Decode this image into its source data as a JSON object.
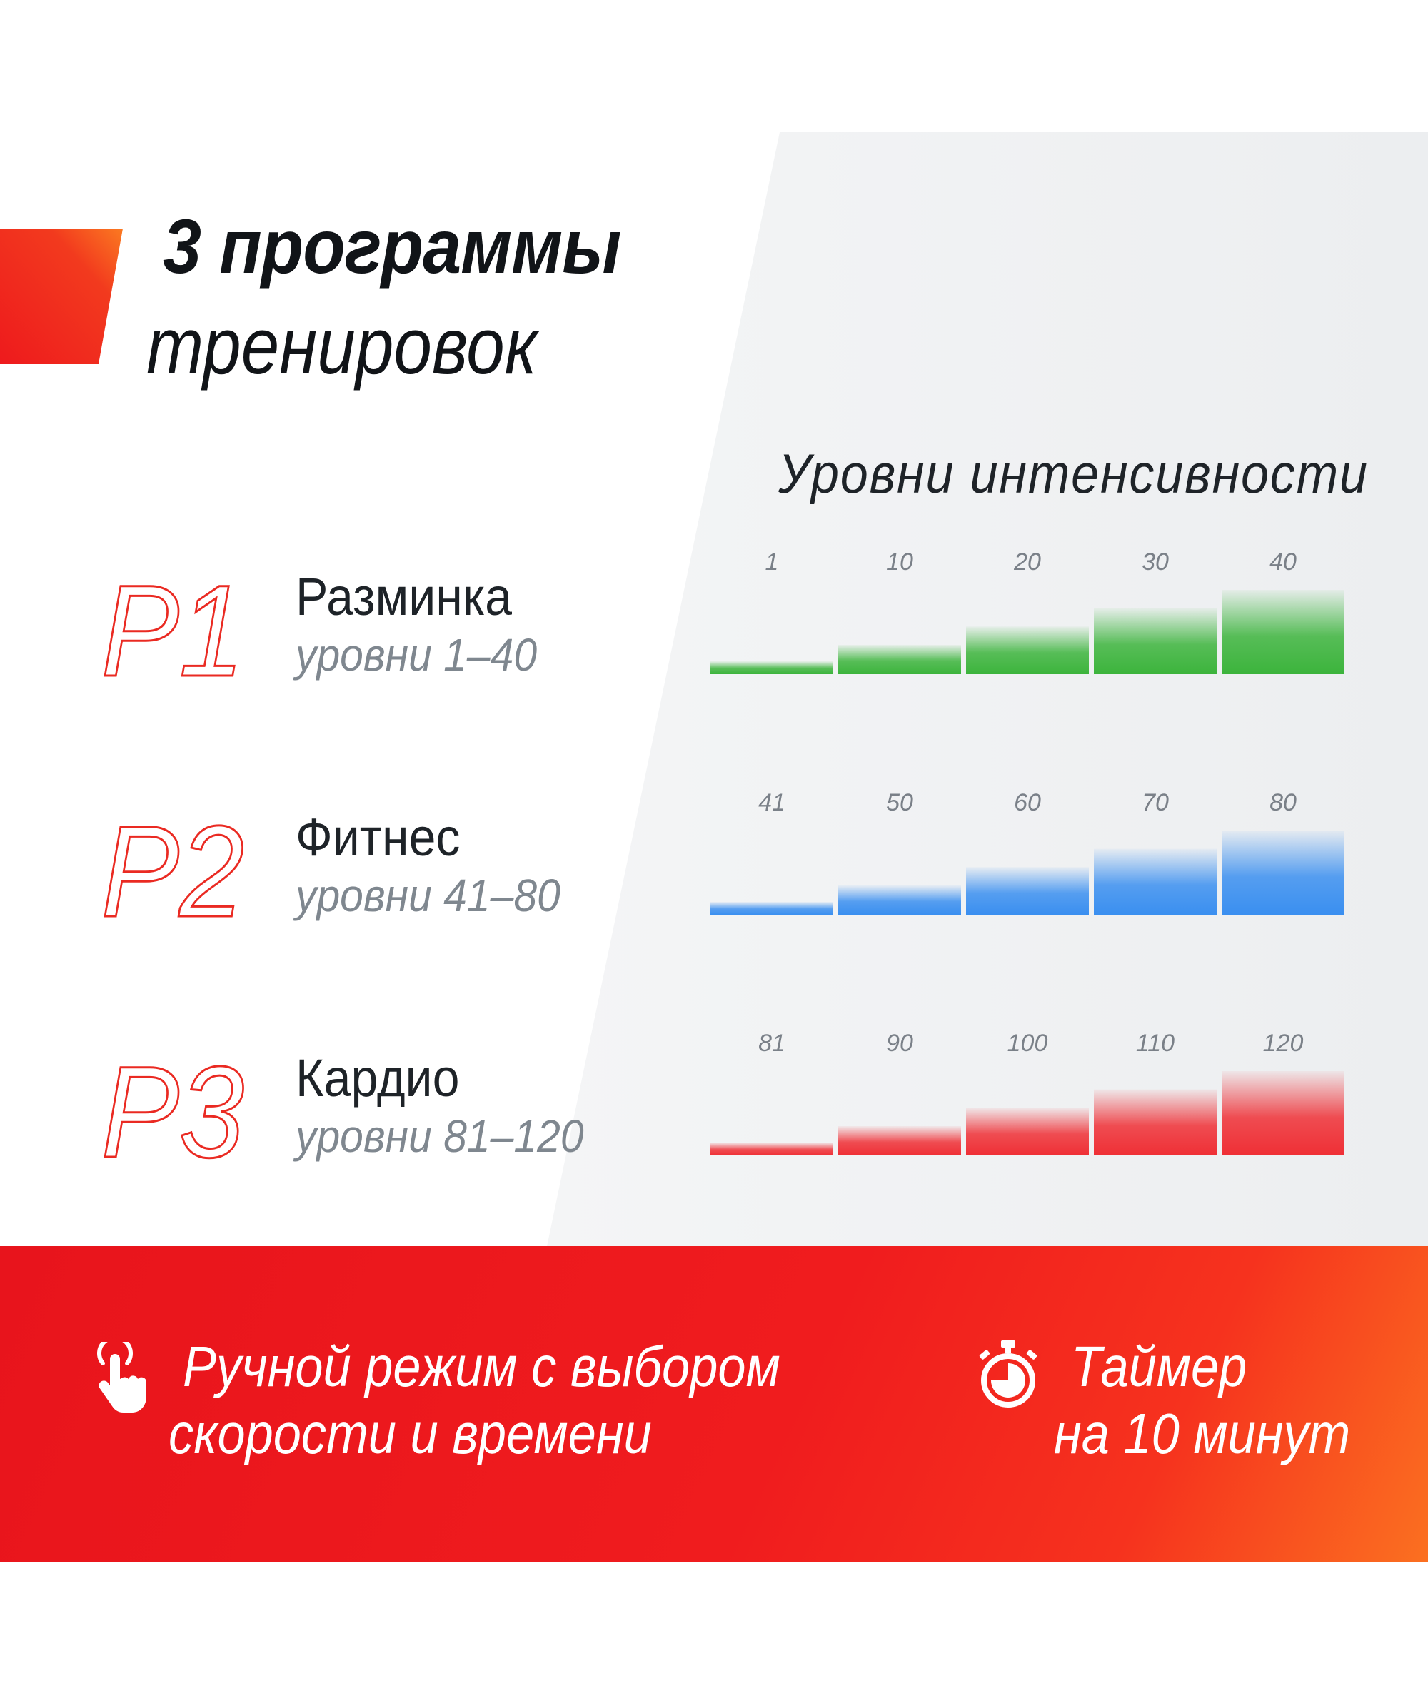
{
  "colors": {
    "accent_red": "#ef1b1d",
    "accent_orange": "#fb7020",
    "green": "#3cb43c",
    "blue": "#3a8ff0",
    "red": "#ef2f35",
    "grey_panel": "#eef0f2"
  },
  "title": {
    "line1": "3 программы",
    "line2": "тренировок"
  },
  "intensity_title": "Уровни интенсивности",
  "programs": [
    {
      "code": "P1",
      "name": "Разминка",
      "levels": "уровни 1–40",
      "color": "green",
      "tick_labels": [
        "1",
        "10",
        "20",
        "30",
        "40"
      ],
      "values": [
        1,
        10,
        20,
        30,
        40
      ]
    },
    {
      "code": "P2",
      "name": "Фитнес",
      "levels": "уровни 41–80",
      "color": "blue",
      "tick_labels": [
        "41",
        "50",
        "60",
        "70",
        "80"
      ],
      "values": [
        41,
        50,
        60,
        70,
        80
      ]
    },
    {
      "code": "P3",
      "name": "Кардио",
      "levels": "уровни 81–120",
      "color": "red",
      "tick_labels": [
        "81",
        "90",
        "100",
        "110",
        "120"
      ],
      "values": [
        81,
        90,
        100,
        110,
        120
      ]
    }
  ],
  "features": {
    "manual": {
      "icon": "hand-touch-icon",
      "line1": "Ручной режим с выбором",
      "line2": "скорости и времени"
    },
    "timer": {
      "icon": "stopwatch-icon",
      "line1": "Таймер",
      "line2": "на 10 минут"
    }
  }
}
